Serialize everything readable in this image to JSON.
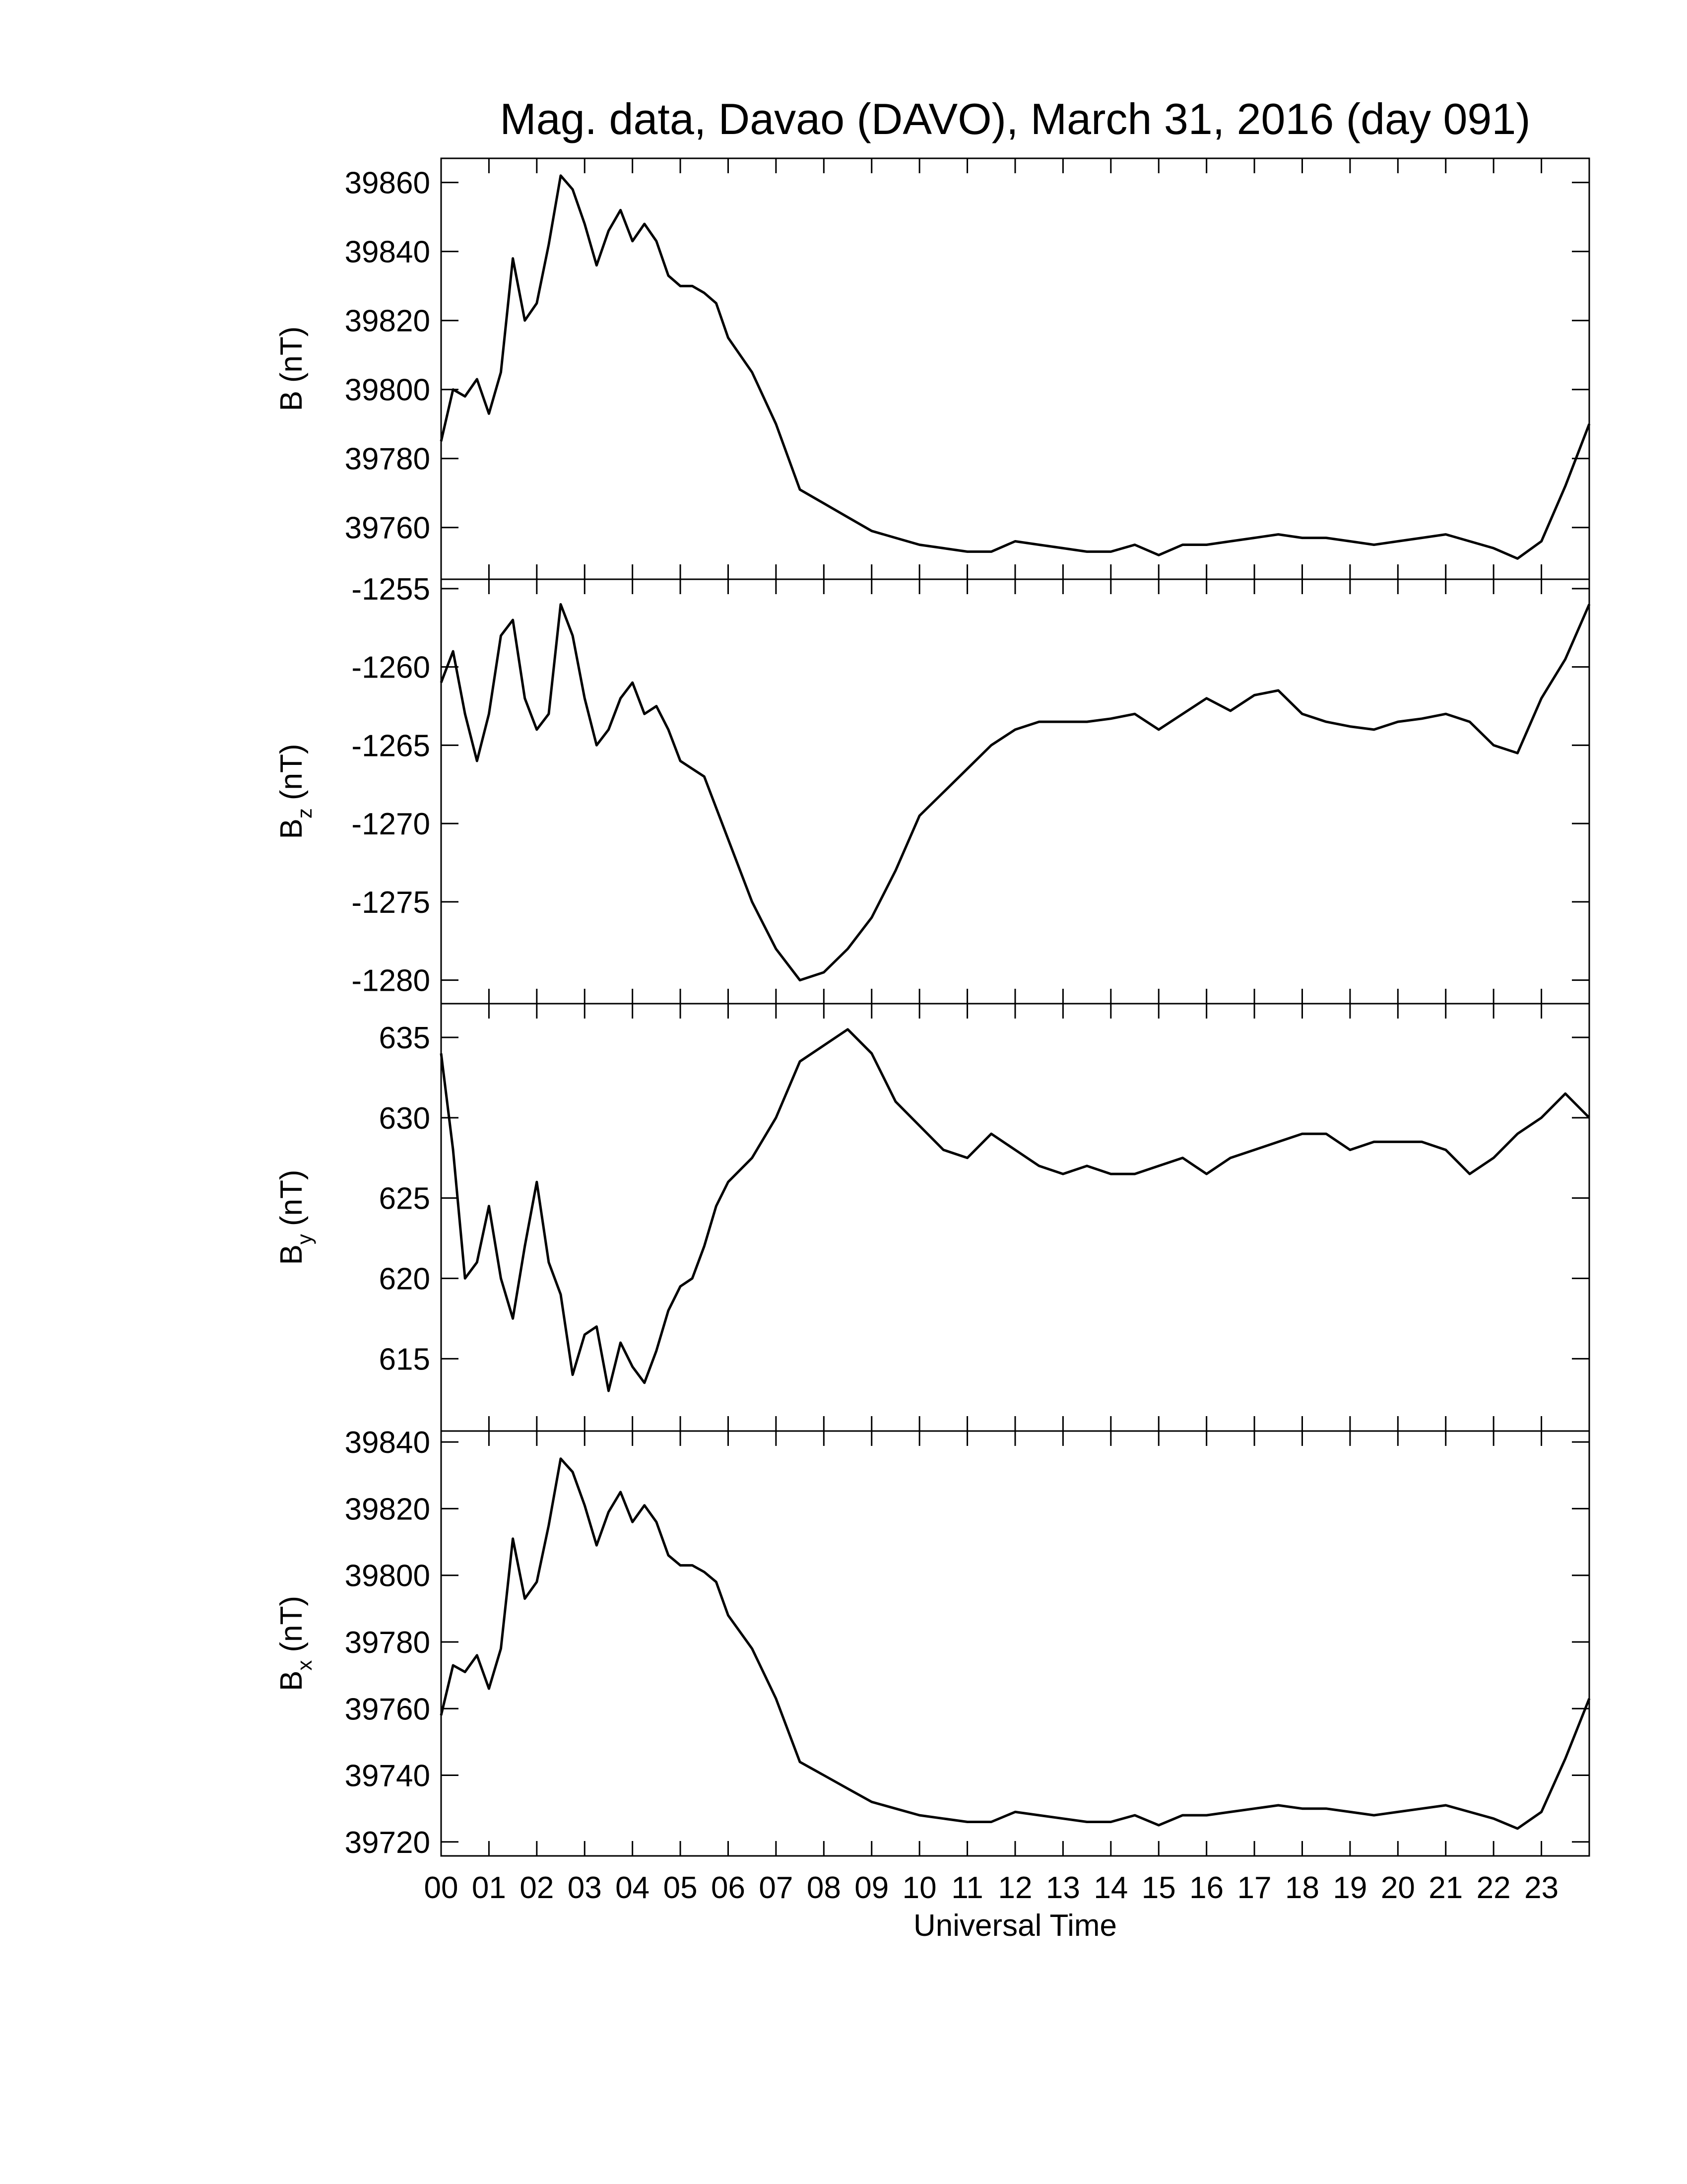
{
  "chart_data": {
    "type": "line",
    "title": "Mag. data, Davao (DAVO), March 31, 2016 (day 091)",
    "xlabel": "Universal Time",
    "xlim": [
      0,
      24
    ],
    "xticks": [
      {
        "value": 0,
        "label": "00"
      },
      {
        "value": 1,
        "label": "01"
      },
      {
        "value": 2,
        "label": "02"
      },
      {
        "value": 3,
        "label": "03"
      },
      {
        "value": 4,
        "label": "04"
      },
      {
        "value": 5,
        "label": "05"
      },
      {
        "value": 6,
        "label": "06"
      },
      {
        "value": 7,
        "label": "07"
      },
      {
        "value": 8,
        "label": "08"
      },
      {
        "value": 9,
        "label": "09"
      },
      {
        "value": 10,
        "label": "10"
      },
      {
        "value": 11,
        "label": "11"
      },
      {
        "value": 12,
        "label": "12"
      },
      {
        "value": 13,
        "label": "13"
      },
      {
        "value": 14,
        "label": "14"
      },
      {
        "value": 15,
        "label": "15"
      },
      {
        "value": 16,
        "label": "16"
      },
      {
        "value": 17,
        "label": "17"
      },
      {
        "value": 18,
        "label": "18"
      },
      {
        "value": 19,
        "label": "19"
      },
      {
        "value": 20,
        "label": "20"
      },
      {
        "value": 21,
        "label": "21"
      },
      {
        "value": 22,
        "label": "22"
      },
      {
        "value": 23,
        "label": "23"
      }
    ],
    "x": [
      0,
      0.25,
      0.5,
      0.75,
      1,
      1.25,
      1.5,
      1.75,
      2,
      2.25,
      2.5,
      2.75,
      3,
      3.25,
      3.5,
      3.75,
      4,
      4.25,
      4.5,
      4.75,
      5,
      5.25,
      5.5,
      5.75,
      6,
      6.5,
      7,
      7.5,
      8,
      8.5,
      9,
      9.5,
      10,
      10.5,
      11,
      11.5,
      12,
      12.5,
      13,
      13.5,
      14,
      14.5,
      15,
      15.5,
      16,
      16.5,
      17,
      17.5,
      18,
      18.5,
      19,
      19.5,
      20,
      20.5,
      21,
      21.5,
      22,
      22.5,
      23,
      23.5,
      24
    ],
    "panels": [
      {
        "ylabel": "B",
        "ylabel_unit": "(nT)",
        "color": "#000000",
        "ylim": [
          39745,
          39867
        ],
        "yticks": [
          39760,
          39780,
          39800,
          39820,
          39840,
          39860
        ],
        "values": [
          39785,
          39800,
          39798,
          39803,
          39793,
          39805,
          39838,
          39820,
          39825,
          39842,
          39862,
          39858,
          39848,
          39836,
          39846,
          39852,
          39843,
          39848,
          39843,
          39833,
          39830,
          39830,
          39828,
          39825,
          39815,
          39805,
          39790,
          39771,
          39767,
          39763,
          39759,
          39757,
          39755,
          39754,
          39753,
          39753,
          39756,
          39755,
          39754,
          39753,
          39753,
          39755,
          39752,
          39755,
          39755,
          39756,
          39757,
          39758,
          39757,
          39757,
          39756,
          39755,
          39756,
          39757,
          39758,
          39756,
          39754,
          39751,
          39756,
          39772,
          39790
        ]
      },
      {
        "ylabel": "B",
        "ylabel_sub": "z",
        "ylabel_unit": "(nT)",
        "color": "#000000",
        "ylim": [
          -1281.5,
          -1254.4
        ],
        "yticks": [
          -1280,
          -1275,
          -1270,
          -1265,
          -1260,
          -1255
        ],
        "values": [
          -1261,
          -1259,
          -1263,
          -1266,
          -1263,
          -1258,
          -1257,
          -1262,
          -1264,
          -1263,
          -1256,
          -1258,
          -1262,
          -1265,
          -1264,
          -1262,
          -1261,
          -1263,
          -1262.5,
          -1264,
          -1266,
          -1266.5,
          -1267,
          -1269,
          -1271,
          -1275,
          -1278,
          -1280,
          -1279.5,
          -1278,
          -1276,
          -1273,
          -1269.5,
          -1268,
          -1266.5,
          -1265,
          -1264,
          -1263.5,
          -1263.5,
          -1263.5,
          -1263.3,
          -1263,
          -1264,
          -1263,
          -1262,
          -1262.8,
          -1261.8,
          -1261.5,
          -1263,
          -1263.5,
          -1263.8,
          -1264,
          -1263.5,
          -1263.3,
          -1263,
          -1263.5,
          -1265,
          -1265.5,
          -1262,
          -1259.5,
          -1256
        ]
      },
      {
        "ylabel": "B",
        "ylabel_sub": "y",
        "ylabel_unit": "(nT)",
        "color": "#000000",
        "ylim": [
          610.5,
          637.1
        ],
        "yticks": [
          615,
          620,
          625,
          630,
          635
        ],
        "values": [
          634,
          628,
          620,
          621,
          624.5,
          620,
          617.5,
          622,
          626,
          621,
          619,
          614,
          616.5,
          617,
          613,
          616,
          614.5,
          613.5,
          615.5,
          618,
          619.5,
          620,
          622,
          624.5,
          626,
          627.5,
          630,
          633.5,
          634.5,
          635.5,
          634,
          631,
          629.5,
          628,
          627.5,
          629,
          628,
          627,
          626.5,
          627,
          626.5,
          626.5,
          627,
          627.5,
          626.5,
          627.5,
          628,
          628.5,
          629,
          629,
          628,
          628.5,
          628.5,
          628.5,
          628,
          626.5,
          627.5,
          629,
          630,
          631.5,
          630
        ]
      },
      {
        "ylabel": "B",
        "ylabel_sub": "x",
        "ylabel_unit": "(nT)",
        "color": "#000000",
        "ylim": [
          39715.8,
          39843.3
        ],
        "yticks": [
          39720,
          39740,
          39760,
          39780,
          39800,
          39820,
          39840
        ],
        "values": [
          39758,
          39773,
          39771,
          39776,
          39766,
          39778,
          39811,
          39793,
          39798,
          39815,
          39835,
          39831,
          39821,
          39809,
          39819,
          39825,
          39816,
          39821,
          39816,
          39806,
          39803,
          39803,
          39801,
          39798,
          39788,
          39778,
          39763,
          39744,
          39740,
          39736,
          39732,
          39730,
          39728,
          39727,
          39726,
          39726,
          39729,
          39728,
          39727,
          39726,
          39726,
          39728,
          39725,
          39728,
          39728,
          39729,
          39730,
          39731,
          39730,
          39730,
          39729,
          39728,
          39729,
          39730,
          39731,
          39729,
          39727,
          39724,
          39729,
          39745,
          39763
        ]
      }
    ]
  }
}
